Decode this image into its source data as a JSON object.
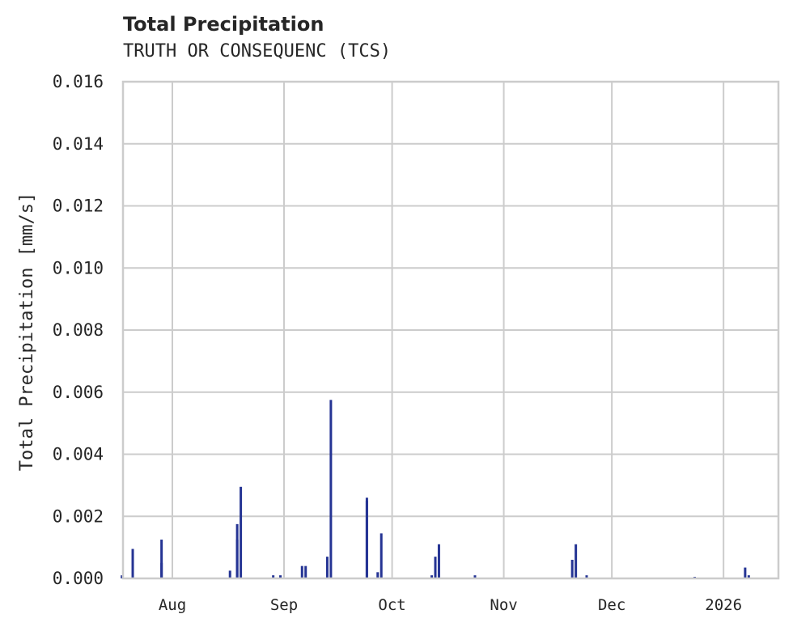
{
  "chart_data": {
    "type": "bar",
    "title": "Total Precipitation",
    "subtitle": "TRUTH OR CONSEQUENC (TCS)",
    "xlabel": "",
    "ylabel": "Total Precipitation [mm/s]",
    "ylim": [
      0,
      0.016
    ],
    "yticks": [
      "0.000",
      "0.002",
      "0.004",
      "0.006",
      "0.008",
      "0.010",
      "0.012",
      "0.014",
      "0.016"
    ],
    "xticks": [
      "Aug",
      "Sep",
      "Oct",
      "Nov",
      "Dec",
      "2026"
    ],
    "grid": true,
    "legend": null,
    "series_color": "#253494",
    "series": [
      {
        "name": "Total Precipitation",
        "points": [
          {
            "date": "2025-07-18",
            "value": 0.0001
          },
          {
            "date": "2025-07-21",
            "value": 0.00095
          },
          {
            "date": "2025-07-29",
            "value": 0.00125
          },
          {
            "date": "2025-07-29",
            "value": 0.0005
          },
          {
            "date": "2025-08-17",
            "value": 0.00025
          },
          {
            "date": "2025-08-19",
            "value": 0.00175
          },
          {
            "date": "2025-08-19",
            "value": 0.00125
          },
          {
            "date": "2025-08-20",
            "value": 0.00295
          },
          {
            "date": "2025-08-29",
            "value": 0.0001
          },
          {
            "date": "2025-08-31",
            "value": 0.0001
          },
          {
            "date": "2025-09-06",
            "value": 0.0004
          },
          {
            "date": "2025-09-07",
            "value": 0.0004
          },
          {
            "date": "2025-09-13",
            "value": 0.0007
          },
          {
            "date": "2025-09-14",
            "value": 0.00575
          },
          {
            "date": "2025-09-24",
            "value": 0.0026
          },
          {
            "date": "2025-09-24",
            "value": 0.0025
          },
          {
            "date": "2025-09-27",
            "value": 0.0002
          },
          {
            "date": "2025-09-28",
            "value": 0.00145
          },
          {
            "date": "2025-10-12",
            "value": 0.0001
          },
          {
            "date": "2025-10-13",
            "value": 0.0007
          },
          {
            "date": "2025-10-14",
            "value": 0.0011
          },
          {
            "date": "2025-10-24",
            "value": 0.0001
          },
          {
            "date": "2025-11-20",
            "value": 0.0006
          },
          {
            "date": "2025-11-21",
            "value": 0.0011
          },
          {
            "date": "2025-11-24",
            "value": 0.0001
          },
          {
            "date": "2025-12-24",
            "value": 5e-05
          },
          {
            "date": "2026-01-07",
            "value": 0.00035
          },
          {
            "date": "2026-01-08",
            "value": 0.0001
          }
        ]
      }
    ]
  }
}
